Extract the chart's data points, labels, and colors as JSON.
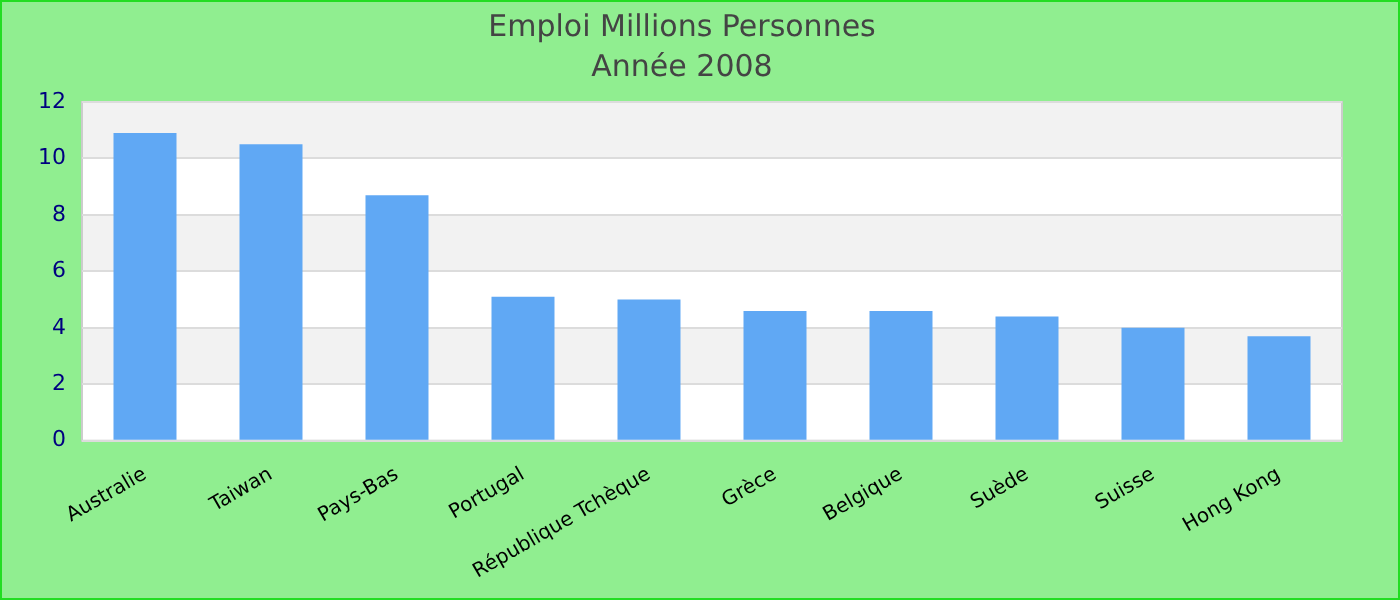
{
  "chart_data": {
    "type": "bar",
    "title": "Emploi Millions Personnes",
    "subtitle": "Année 2008",
    "categories": [
      "Australie",
      "Taiwan",
      "Pays-Bas",
      "Portugal",
      "République Tchèque",
      "Grèce",
      "Belgique",
      "Suède",
      "Suisse",
      "Hong Kong"
    ],
    "values": [
      10.9,
      10.5,
      8.7,
      5.1,
      5.0,
      4.6,
      4.6,
      4.4,
      4.0,
      3.7
    ],
    "color": "#60a8f4",
    "ylim": [
      0,
      12
    ],
    "yticks": [
      0,
      2,
      4,
      6,
      8,
      10,
      12
    ],
    "grid": "y"
  }
}
